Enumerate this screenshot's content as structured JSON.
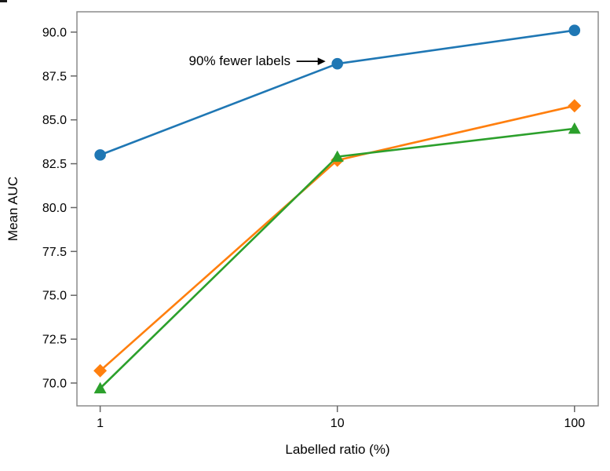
{
  "figure": {
    "background": "#ffffff",
    "spine_color": "#8c8c8c",
    "tick_color": "#666666",
    "text_color": "#000000",
    "edge_artifact_present": true
  },
  "chart_data": {
    "type": "line",
    "title": "",
    "xlabel": "Labelled ratio (%)",
    "ylabel": "Mean AUC",
    "x_scale": "log",
    "x": [
      1,
      10,
      100
    ],
    "x_tick_labels": [
      "1",
      "10",
      "100"
    ],
    "y_ticks": [
      70.0,
      72.5,
      75.0,
      77.5,
      80.0,
      82.5,
      85.0,
      87.5,
      90.0
    ],
    "y_tick_labels": [
      "70.0",
      "72.5",
      "75.0",
      "77.5",
      "80.0",
      "82.5",
      "85.0",
      "87.5",
      "90.0"
    ],
    "xlim_log10": [
      -0.098,
      2.1
    ],
    "ylim": [
      68.7,
      91.16
    ],
    "grid": false,
    "legend": "none",
    "series": [
      {
        "name": "blue-circles",
        "marker": "circle",
        "color": "#1f77b4",
        "values": [
          83.0,
          88.2,
          90.1
        ]
      },
      {
        "name": "orange-diamonds",
        "marker": "diamond",
        "color": "#ff7f0e",
        "values": [
          70.7,
          82.7,
          85.8
        ]
      },
      {
        "name": "green-triangles",
        "marker": "triangle",
        "color": "#2ca02c",
        "values": [
          69.7,
          82.9,
          84.5
        ]
      }
    ],
    "annotation": {
      "text": "90% fewer labels",
      "target_series": "blue-circles",
      "target_x": 10,
      "target_y": 88.2,
      "arrow_direction": "right"
    }
  }
}
